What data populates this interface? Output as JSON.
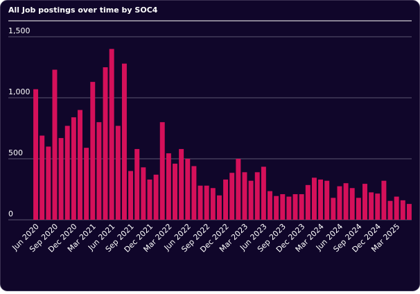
{
  "chart_data": {
    "type": "bar",
    "title": "All Job postings over time by SOC4",
    "categories": [
      "Jun 2020",
      null,
      null,
      "Sep 2020",
      null,
      null,
      "Dec 2020",
      null,
      null,
      "Mar 2021",
      null,
      null,
      "Jun 2021",
      null,
      null,
      "Sep 2021",
      null,
      null,
      "Dec 2021",
      null,
      null,
      "Mar 2022",
      null,
      null,
      "Jun 2022",
      null,
      null,
      "Sep 2022",
      null,
      null,
      "Dec 2022",
      null,
      null,
      "Mar 2023",
      null,
      null,
      "Jun 2023",
      null,
      null,
      "Sep 2023",
      null,
      null,
      "Dec 2023",
      null,
      null,
      "Mar 2024",
      null,
      null,
      "Jun 2024",
      null,
      null,
      "Sep 2024",
      null,
      null,
      "Dec 2024",
      null,
      null,
      "Mar 2025",
      null,
      null
    ],
    "values": [
      1070,
      690,
      600,
      1230,
      670,
      770,
      840,
      900,
      590,
      1130,
      800,
      1250,
      1400,
      770,
      1280,
      400,
      580,
      430,
      330,
      370,
      800,
      545,
      460,
      580,
      500,
      440,
      280,
      280,
      260,
      200,
      330,
      385,
      500,
      390,
      320,
      390,
      435,
      235,
      195,
      210,
      190,
      210,
      210,
      285,
      345,
      330,
      320,
      180,
      275,
      300,
      260,
      180,
      295,
      225,
      215,
      320,
      155,
      190,
      160,
      130
    ],
    "color": "#d5105a",
    "ylim": [
      0,
      1500
    ],
    "yticks": [
      0,
      500,
      {
        "value": 1000,
        "label": "1,000"
      },
      {
        "value": 1500,
        "label": "1,500"
      }
    ],
    "grid": true
  }
}
